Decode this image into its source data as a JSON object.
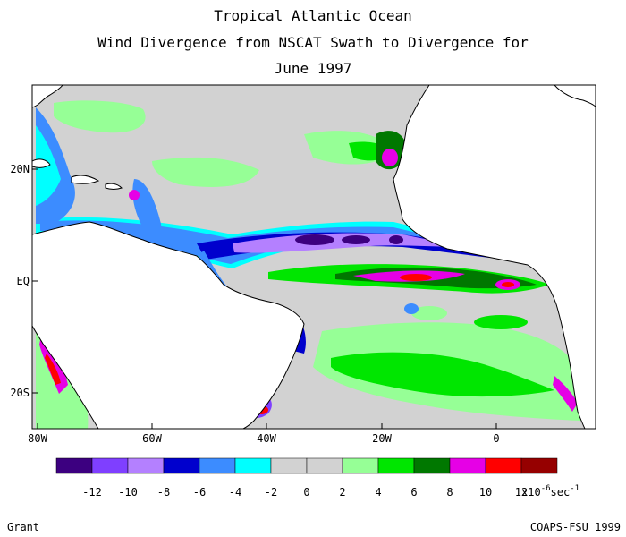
{
  "title": {
    "line1": "Tropical Atlantic Ocean",
    "line2": "Wind Divergence from NSCAT Swath to Divergence for",
    "line3": "June 1997"
  },
  "axes": {
    "lat_labels": [
      "20N",
      "EQ",
      "20S"
    ],
    "lon_labels": [
      "80W",
      "60W",
      "40W",
      "20W",
      "0"
    ]
  },
  "colorbar": {
    "colors": [
      "#3c0080",
      "#7f3fff",
      "#b480ff",
      "#0000cd",
      "#3c8cff",
      "#00ffff",
      "#d2d2d2",
      "#d2d2d2",
      "#96ff96",
      "#00e600",
      "#007800",
      "#e600e6",
      "#ff0000",
      "#960000"
    ],
    "tick_labels": [
      "-12",
      "-10",
      "-8",
      "-6",
      "-4",
      "-2",
      "0",
      "2",
      "4",
      "6",
      "8",
      "10",
      "12"
    ],
    "units_prefix": "x10",
    "units_exponent": "-6",
    "units_suffix": "sec",
    "units_suffix_exponent": "-1"
  },
  "footer": {
    "left": "Grant",
    "right": "COAPS-FSU 1999"
  },
  "colors": {
    "land": "#ffffff",
    "ocean_neutral": "#d2d2d2",
    "coast": "#000000"
  }
}
